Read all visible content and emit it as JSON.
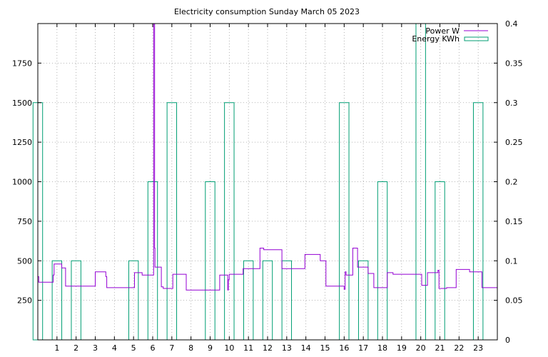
{
  "chart_data": {
    "type": "line",
    "title": "Electricity consumption Sunday March 05 2023",
    "xlabel": "",
    "ylabel": "",
    "y2label": "",
    "xlim": [
      0,
      24
    ],
    "ylim": [
      0,
      2000
    ],
    "y2lim": [
      0,
      0.4
    ],
    "x_ticks": [
      1,
      2,
      3,
      4,
      5,
      6,
      7,
      8,
      9,
      10,
      11,
      12,
      13,
      14,
      15,
      16,
      17,
      18,
      19,
      20,
      21,
      22,
      23
    ],
    "y_ticks": [
      250,
      500,
      750,
      1000,
      1250,
      1500,
      1750
    ],
    "y2_ticks": [
      "0",
      "0.05",
      "0.1",
      "0.15",
      "0.2",
      "0.25",
      "0.3",
      "0.35",
      "0.4"
    ],
    "grid": true,
    "legend_position": "top-right",
    "colors": {
      "power": "#9400d3",
      "energy": "#009e73",
      "grid": "#a0a0a0",
      "axis": "#000000"
    },
    "series": [
      {
        "name": "Power W",
        "axis": "y",
        "style": "step",
        "points": [
          [
            0,
            400
          ],
          [
            0.05,
            365
          ],
          [
            0.75,
            365
          ],
          [
            0.8,
            410
          ],
          [
            0.85,
            480
          ],
          [
            1.2,
            480
          ],
          [
            1.25,
            455
          ],
          [
            1.4,
            455
          ],
          [
            1.45,
            340
          ],
          [
            2.0,
            340
          ],
          [
            2.95,
            340
          ],
          [
            3.0,
            430
          ],
          [
            3.5,
            430
          ],
          [
            3.55,
            400
          ],
          [
            3.6,
            330
          ],
          [
            4.0,
            330
          ],
          [
            5.0,
            330
          ],
          [
            5.05,
            425
          ],
          [
            5.4,
            425
          ],
          [
            5.45,
            410
          ],
          [
            6.0,
            410
          ],
          [
            6.05,
            2000
          ],
          [
            6.1,
            580
          ],
          [
            6.12,
            460
          ],
          [
            6.4,
            460
          ],
          [
            6.45,
            335
          ],
          [
            6.55,
            325
          ],
          [
            7.0,
            325
          ],
          [
            7.05,
            415
          ],
          [
            7.7,
            415
          ],
          [
            7.75,
            315
          ],
          [
            8.0,
            315
          ],
          [
            9.0,
            315
          ],
          [
            9.45,
            315
          ],
          [
            9.5,
            410
          ],
          [
            9.9,
            410
          ],
          [
            9.92,
            315
          ],
          [
            9.95,
            380
          ],
          [
            10.0,
            415
          ],
          [
            10.7,
            415
          ],
          [
            10.72,
            450
          ],
          [
            11.0,
            450
          ],
          [
            11.55,
            450
          ],
          [
            11.6,
            580
          ],
          [
            11.8,
            570
          ],
          [
            12.0,
            570
          ],
          [
            12.7,
            570
          ],
          [
            12.75,
            450
          ],
          [
            13.0,
            450
          ],
          [
            13.9,
            450
          ],
          [
            13.95,
            540
          ],
          [
            14.0,
            540
          ],
          [
            14.7,
            540
          ],
          [
            14.75,
            500
          ],
          [
            15.0,
            500
          ],
          [
            15.05,
            340
          ],
          [
            15.95,
            340
          ],
          [
            16.0,
            320
          ],
          [
            16.05,
            430
          ],
          [
            16.1,
            410
          ],
          [
            16.4,
            410
          ],
          [
            16.45,
            580
          ],
          [
            16.65,
            580
          ],
          [
            16.7,
            460
          ],
          [
            17.0,
            460
          ],
          [
            17.2,
            460
          ],
          [
            17.25,
            420
          ],
          [
            17.5,
            420
          ],
          [
            17.55,
            330
          ],
          [
            18.0,
            330
          ],
          [
            18.2,
            330
          ],
          [
            18.25,
            425
          ],
          [
            18.5,
            425
          ],
          [
            18.55,
            415
          ],
          [
            19.0,
            415
          ],
          [
            20.0,
            415
          ],
          [
            20.05,
            345
          ],
          [
            20.3,
            345
          ],
          [
            20.35,
            425
          ],
          [
            20.85,
            425
          ],
          [
            20.9,
            440
          ],
          [
            20.95,
            325
          ],
          [
            21.3,
            325
          ],
          [
            21.35,
            330
          ],
          [
            21.8,
            330
          ],
          [
            21.85,
            445
          ],
          [
            22.5,
            445
          ],
          [
            22.55,
            430
          ],
          [
            23.0,
            430
          ],
          [
            23.15,
            430
          ],
          [
            23.2,
            330
          ],
          [
            24.0,
            330
          ]
        ]
      },
      {
        "name": "Energy KWh",
        "axis": "y2",
        "style": "boxes",
        "box_width": 0.5,
        "x": [
          0,
          1,
          2,
          5,
          6,
          7,
          9,
          10,
          11,
          12,
          13,
          16,
          17,
          18,
          20,
          21,
          23
        ],
        "values": [
          0.3,
          0.1,
          0.1,
          0.1,
          0.2,
          0.3,
          0.2,
          0.3,
          0.1,
          0.1,
          0.1,
          0.3,
          0.1,
          0.2,
          0.4,
          0.2,
          0.3
        ]
      }
    ]
  }
}
